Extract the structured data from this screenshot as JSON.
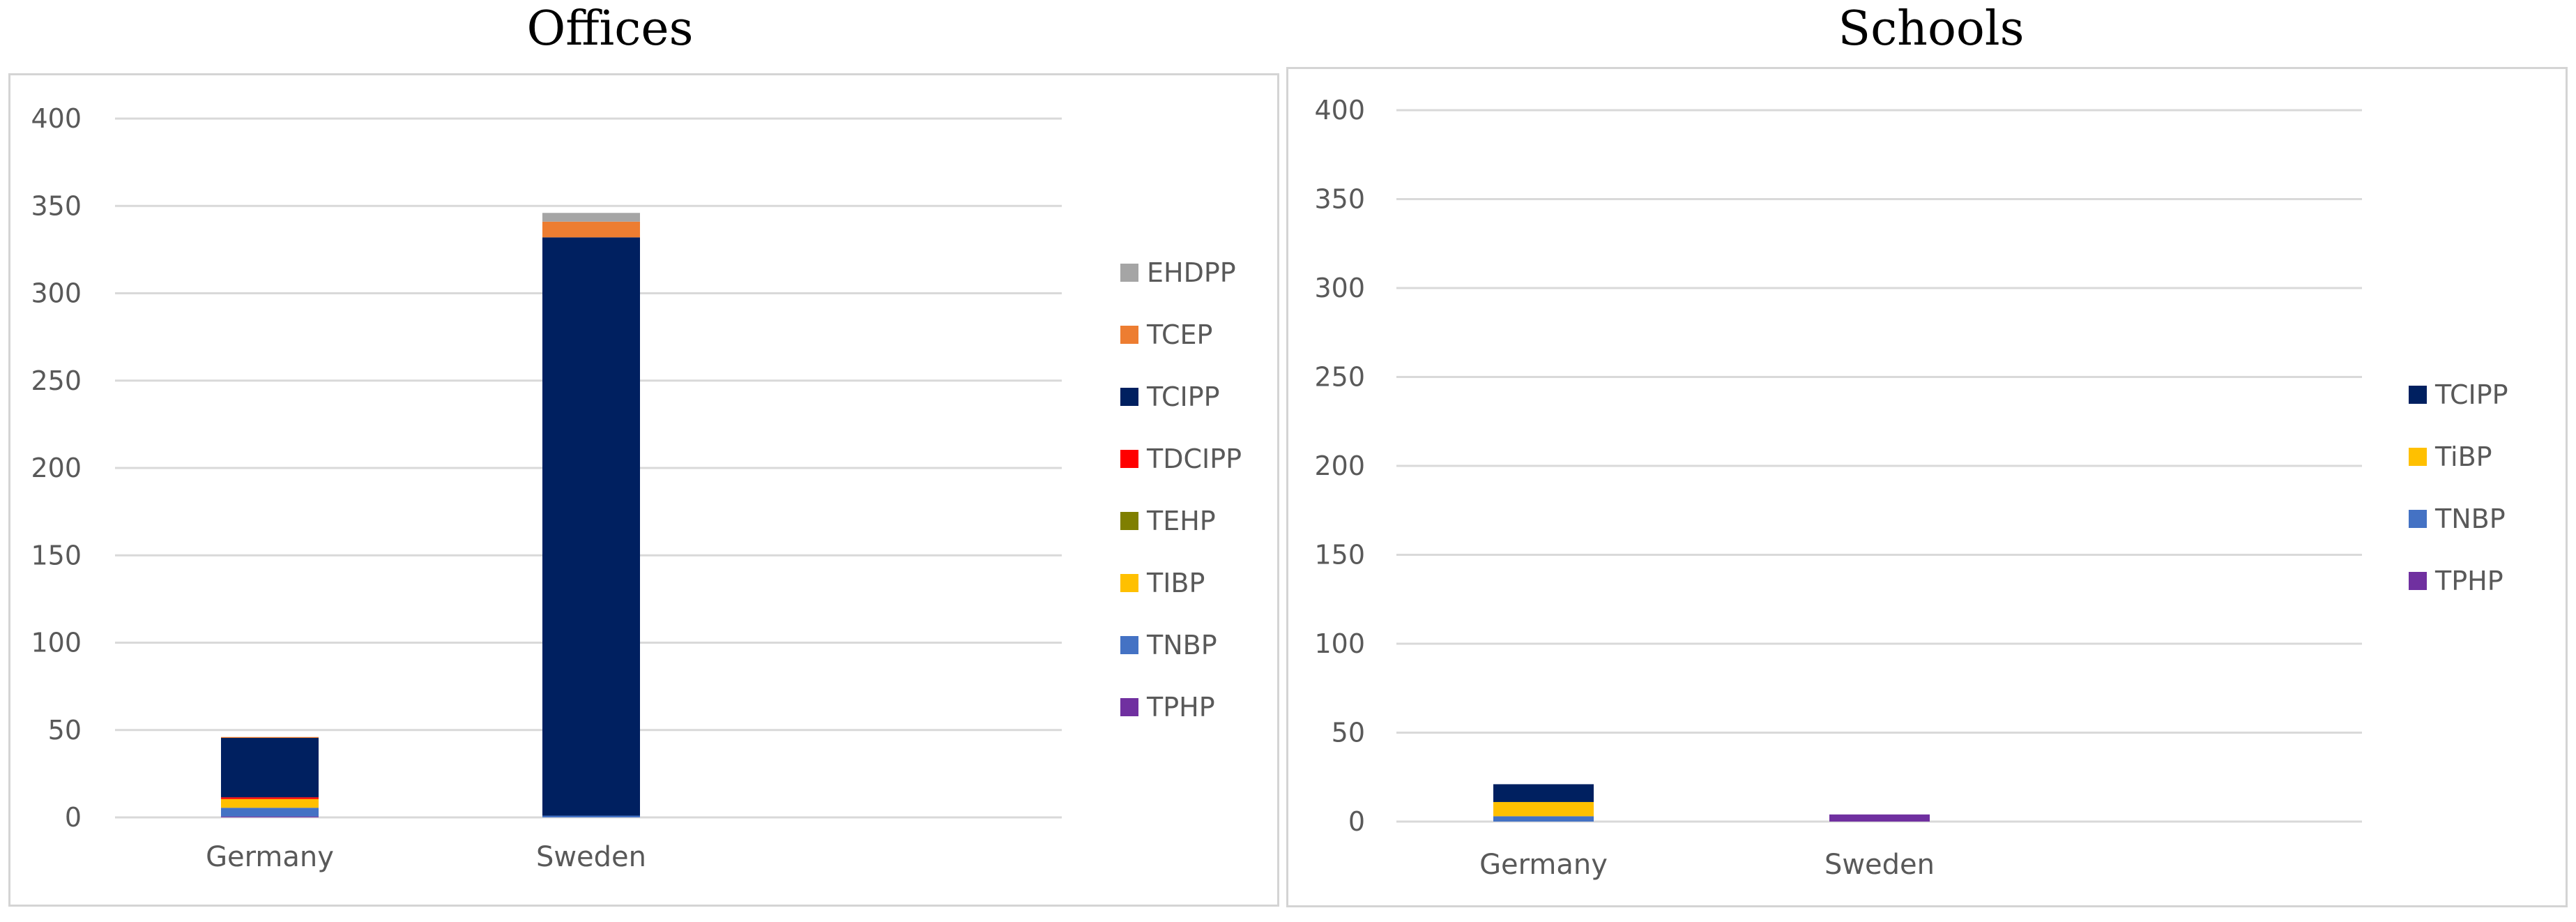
{
  "chart_data": [
    {
      "type": "bar",
      "stacked": true,
      "title": "Offices",
      "categories": [
        "Germany",
        "Sweden"
      ],
      "ylim": [
        0,
        400
      ],
      "yticks": [
        0,
        50,
        100,
        150,
        200,
        250,
        300,
        350,
        400
      ],
      "grid": true,
      "legend_position": "right",
      "series": [
        {
          "name": "TPHP",
          "color": "#7030A0",
          "values": [
            0.5,
            0
          ]
        },
        {
          "name": "TNBP",
          "color": "#4472C4",
          "values": [
            5,
            1
          ]
        },
        {
          "name": "TIBP",
          "color": "#FFC000",
          "values": [
            5,
            0
          ]
        },
        {
          "name": "TEHP",
          "color": "#7F7F00",
          "values": [
            0,
            0
          ]
        },
        {
          "name": "TDCIPP",
          "color": "#FF0000",
          "values": [
            1,
            0
          ]
        },
        {
          "name": "TCIPP",
          "color": "#002060",
          "values": [
            34,
            331
          ]
        },
        {
          "name": "TCEP",
          "color": "#ED7D31",
          "values": [
            0.5,
            9
          ]
        },
        {
          "name": "EHDPP",
          "color": "#A5A5A5",
          "values": [
            0,
            5
          ]
        }
      ]
    },
    {
      "type": "bar",
      "stacked": true,
      "title": "Schools",
      "categories": [
        "Germany",
        "Sweden"
      ],
      "ylim": [
        0,
        400
      ],
      "yticks": [
        0,
        50,
        100,
        150,
        200,
        250,
        300,
        350,
        400
      ],
      "grid": true,
      "legend_position": "right",
      "series": [
        {
          "name": "TPHP",
          "color": "#7030A0",
          "values": [
            0,
            4
          ]
        },
        {
          "name": "TNBP",
          "color": "#4472C4",
          "values": [
            3,
            0
          ]
        },
        {
          "name": "TiBP",
          "color": "#FFC000",
          "values": [
            8,
            0
          ]
        },
        {
          "name": "TCIPP",
          "color": "#002060",
          "values": [
            10,
            0
          ]
        }
      ]
    }
  ]
}
